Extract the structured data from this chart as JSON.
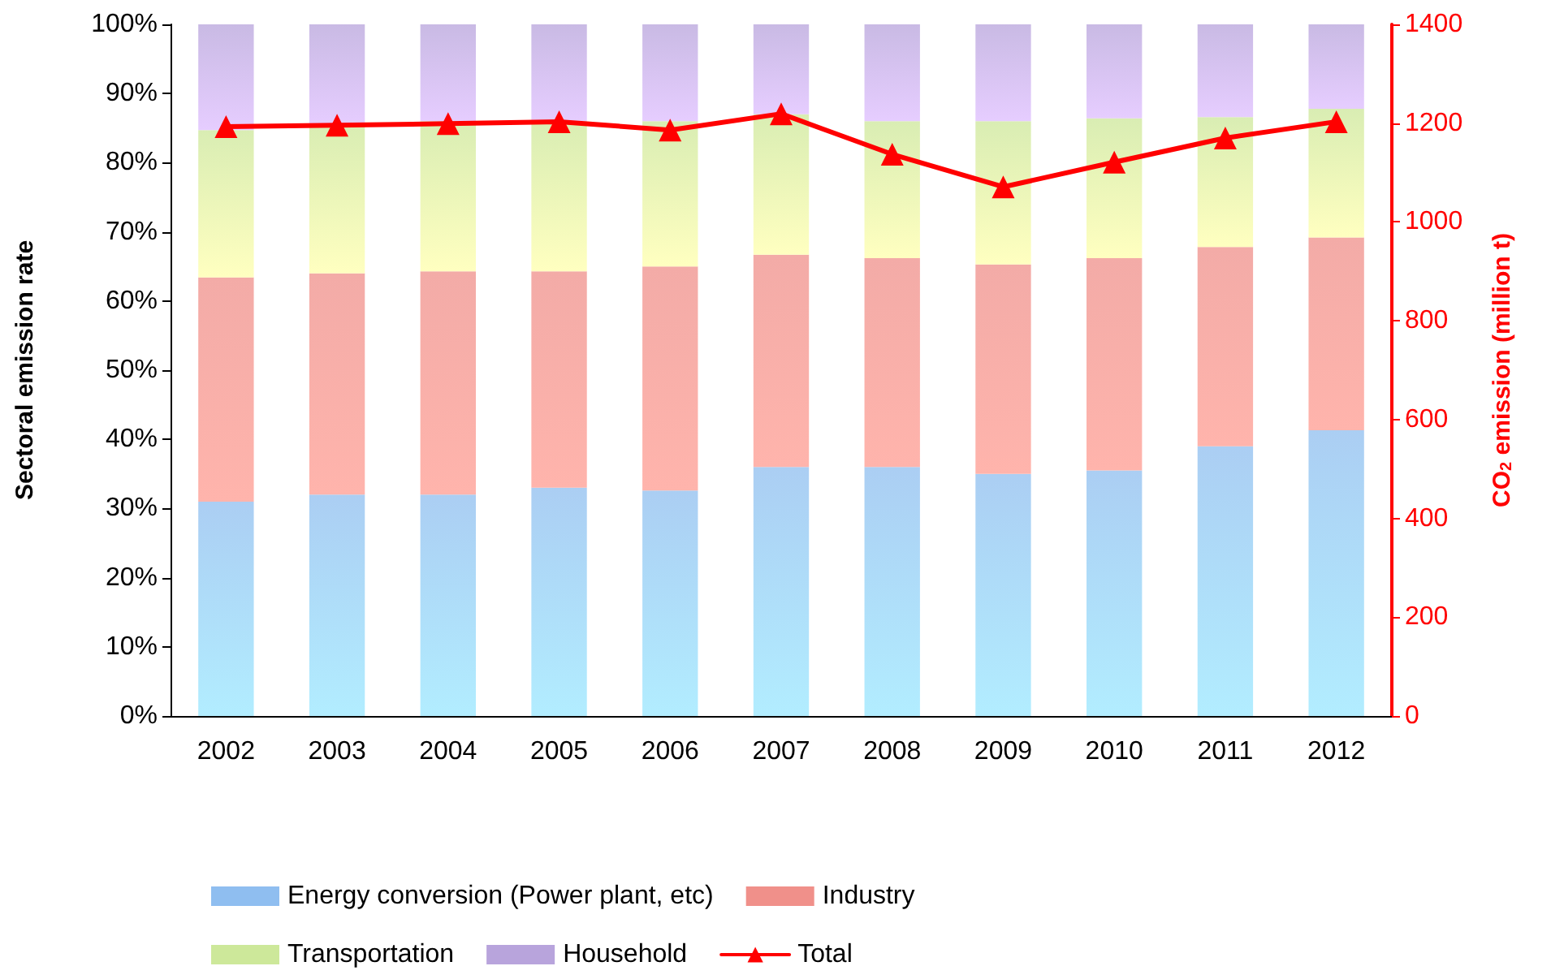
{
  "chart_data": {
    "type": "bar",
    "stacked": true,
    "ylabel": "Sectoral emission rate",
    "y2label": "CO$_{2}$ emission (million t)",
    "categories": [
      "2002",
      "2003",
      "2004",
      "2005",
      "2006",
      "2007",
      "2008",
      "2009",
      "2010",
      "2011",
      "2012"
    ],
    "series": [
      {
        "name": "Energy conversion (Power plant, etc)",
        "color": "#8fbef0",
        "values": [
          31,
          32,
          32,
          33,
          32.6,
          36,
          36,
          35,
          35.5,
          39,
          41.3
        ]
      },
      {
        "name": "Industry",
        "color": "#f0908a",
        "values": [
          32.4,
          32,
          32.3,
          31.3,
          32.4,
          30.7,
          30.2,
          30.3,
          30.7,
          28.8,
          27.9
        ]
      },
      {
        "name": "Transportation",
        "color": "#cde89a",
        "values": [
          21.3,
          21.4,
          21.7,
          21.7,
          21,
          20.3,
          19.8,
          20.7,
          20.2,
          18.8,
          18.6
        ]
      },
      {
        "name": "Household",
        "color": "#b8a4dc",
        "values": [
          15.3,
          14.6,
          14,
          14,
          14,
          13,
          14,
          14,
          13.6,
          13.4,
          12.2
        ]
      },
      {
        "name": "Total",
        "type": "line",
        "axis": "y2",
        "color": "#ff0000",
        "marker": "triangle",
        "values": [
          1193,
          1196,
          1199,
          1203,
          1186,
          1219,
          1137,
          1071,
          1121,
          1170,
          1203
        ]
      }
    ],
    "ylim": [
      0,
      100
    ],
    "yticks": [
      {
        "value": 0,
        "label": "0%"
      },
      {
        "value": 10,
        "label": "10%"
      },
      {
        "value": 20,
        "label": "20%"
      },
      {
        "value": 30,
        "label": "30%"
      },
      {
        "value": 40,
        "label": "40%"
      },
      {
        "value": 50,
        "label": "50%"
      },
      {
        "value": 60,
        "label": "60%"
      },
      {
        "value": 70,
        "label": "70%"
      },
      {
        "value": 80,
        "label": "80%"
      },
      {
        "value": 90,
        "label": "90%"
      },
      {
        "value": 100,
        "label": "100%"
      }
    ],
    "y2lim": [
      0,
      1400
    ],
    "y2ticks": [
      0,
      200,
      400,
      600,
      800,
      1000,
      1200,
      1400
    ],
    "grid": false,
    "legend": "bottom"
  }
}
